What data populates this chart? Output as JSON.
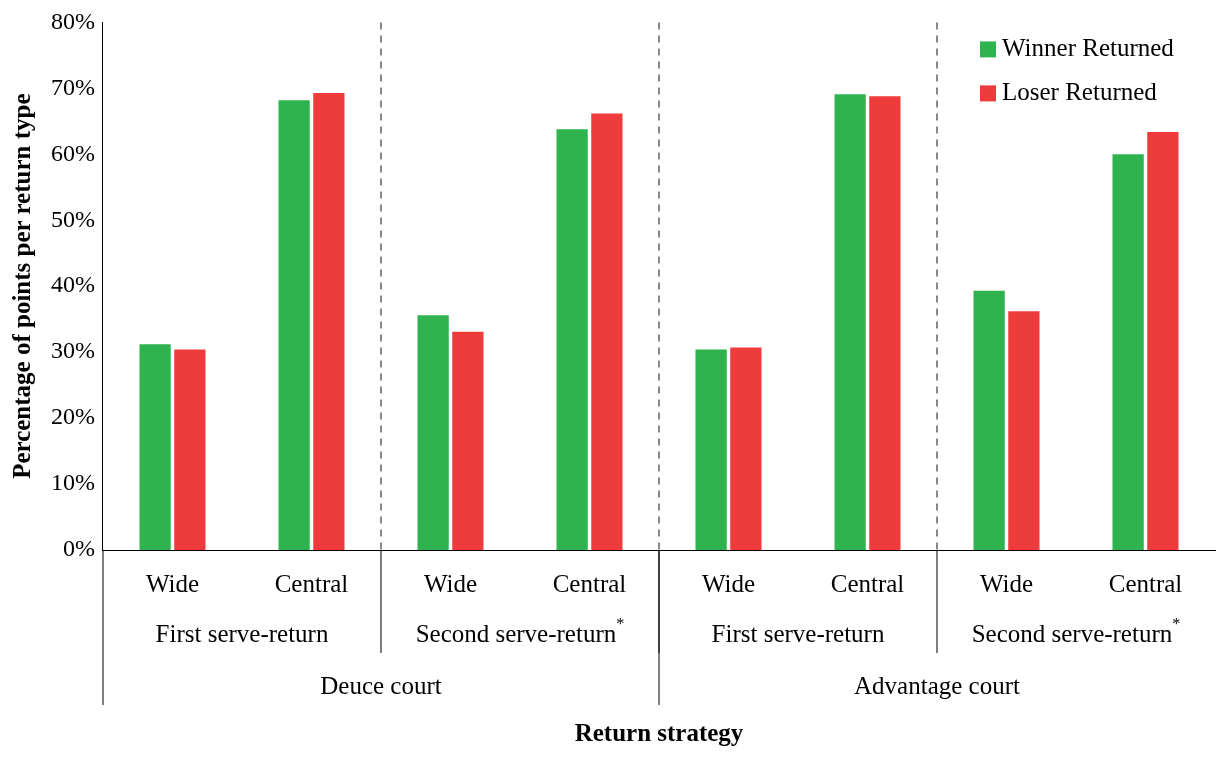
{
  "chart_data": {
    "type": "bar",
    "xlabel": "Return strategy",
    "ylabel": "Percentage of points per return type",
    "categories": [
      "Wide",
      "Central",
      "Wide",
      "Central",
      "Wide",
      "Central",
      "Wide",
      "Central"
    ],
    "series": [
      {
        "name": "Winner Returned",
        "color": "#2eb34f",
        "values": [
          31.2,
          68.2,
          35.6,
          63.8,
          30.4,
          69.1,
          39.3,
          60.0
        ]
      },
      {
        "name": "Loser Returned",
        "color": "#ee3b3b",
        "values": [
          30.4,
          69.3,
          33.1,
          66.2,
          30.7,
          68.8,
          36.2,
          63.4
        ]
      }
    ],
    "ylim": [
      0,
      80
    ],
    "yticks": [
      {
        "value": 0,
        "label": "0%"
      },
      {
        "value": 10,
        "label": "10%"
      },
      {
        "value": 20,
        "label": "20%"
      },
      {
        "value": 30,
        "label": "30%"
      },
      {
        "value": 40,
        "label": "40%"
      },
      {
        "value": 50,
        "label": "50%"
      },
      {
        "value": 60,
        "label": "60%"
      },
      {
        "value": 70,
        "label": "70%"
      },
      {
        "value": 80,
        "label": "80%"
      }
    ],
    "annotations": [
      "First serve-return",
      "Second serve-return$^{*}$",
      "First serve-return",
      "Second serve-return$^{*}$",
      "Deuce court",
      "Advantage court"
    ],
    "grid": false,
    "legend": "top right"
  }
}
